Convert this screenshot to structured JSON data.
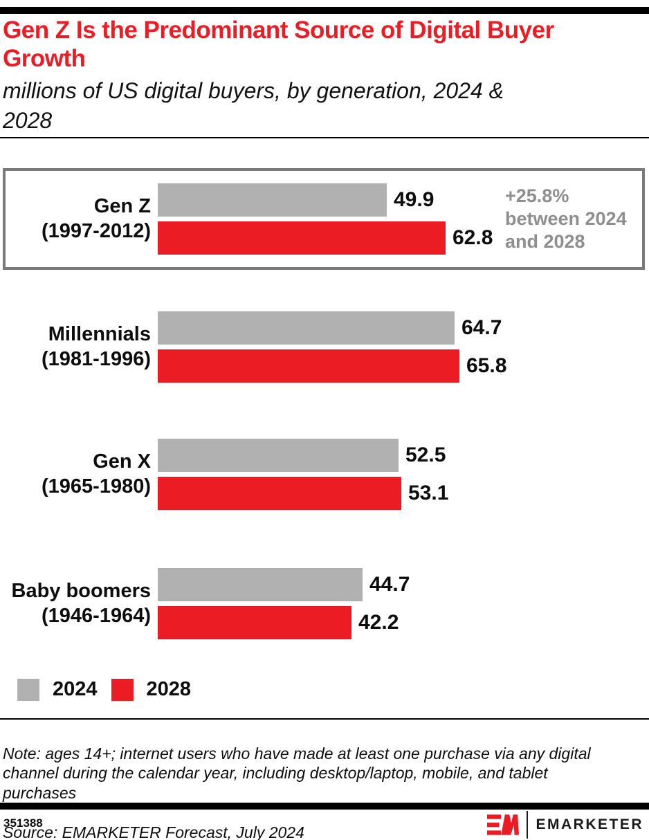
{
  "header": {
    "title": "Gen Z Is the Predominant Source of Digital Buyer\nGrowth",
    "subtitle": "millions of US digital buyers, by generation, 2024 &\n2028"
  },
  "colors": {
    "accent_red": "#ec1c24",
    "bar_2024_gray": "#b1b1b1",
    "bar_2028_red": "#ec1c24",
    "annotation_gray": "#8e8e8e",
    "highlight_box_border": "#7a7a7a",
    "black_bar": "#000000"
  },
  "chart_data": {
    "type": "bar",
    "orientation": "horizontal",
    "title": "Gen Z Is the Predominant Source of Digital Buyer Growth",
    "subtitle": "millions of US digital buyers, by generation, 2024 & 2028",
    "unit": "millions of US digital buyers",
    "categories": [
      "Gen Z (1997-2012)",
      "Millennials (1981-1996)",
      "Gen X (1965-1980)",
      "Baby boomers (1946-1964)"
    ],
    "series": [
      {
        "name": "2024",
        "color": "#b1b1b1",
        "values": [
          49.9,
          64.7,
          52.5,
          44.7
        ]
      },
      {
        "name": "2028",
        "color": "#ec1c24",
        "values": [
          62.8,
          65.8,
          53.1,
          42.2
        ]
      }
    ],
    "value_axis_range": [
      0,
      66
    ],
    "grid": false,
    "legend_position": "bottom-left",
    "annotations": [
      {
        "target": "Gen Z (1997-2012)",
        "text": "+25.8%\nbetween 2024\nand 2028",
        "highlighted_box": true
      }
    ]
  },
  "legend": {
    "items": [
      {
        "label": "2024",
        "color": "#b1b1b1"
      },
      {
        "label": "2028",
        "color": "#ec1c24"
      }
    ]
  },
  "footnote": {
    "note": "Note: ages 14+; internet users who have made at least one purchase via any digital\nchannel during the calendar year, including desktop/laptop, mobile, and tablet\npurchases",
    "source": "Source: EMARKETER Forecast, July 2024"
  },
  "footer": {
    "chart_id": "351388",
    "brand": "EMARKETER"
  }
}
